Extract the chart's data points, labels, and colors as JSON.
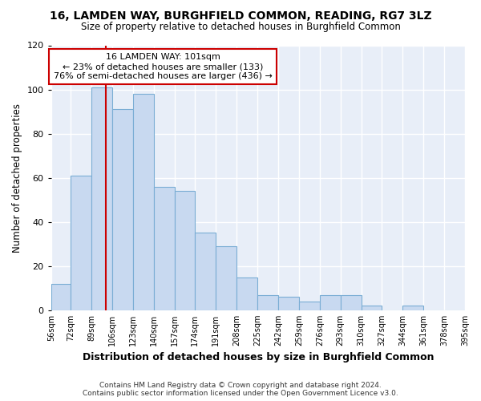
{
  "title": "16, LAMDEN WAY, BURGHFIELD COMMON, READING, RG7 3LZ",
  "subtitle": "Size of property relative to detached houses in Burghfield Common",
  "xlabel": "Distribution of detached houses by size in Burghfield Common",
  "ylabel": "Number of detached properties",
  "annotation_line1": "16 LAMDEN WAY: 101sqm",
  "annotation_line2": "← 23% of detached houses are smaller (133)",
  "annotation_line3": "76% of semi-detached houses are larger (436) →",
  "property_size": 101,
  "bin_edges": [
    56,
    72,
    89,
    106,
    123,
    140,
    157,
    174,
    191,
    208,
    225,
    242,
    259,
    276,
    293,
    310,
    327,
    344,
    361,
    378,
    395
  ],
  "bar_heights": [
    12,
    61,
    101,
    91,
    98,
    56,
    54,
    35,
    29,
    15,
    7,
    6,
    4,
    7,
    7,
    2,
    0,
    2,
    0,
    0
  ],
  "bar_color": "#c8d9f0",
  "bar_edge_color": "#7aadd4",
  "vline_color": "#cc0000",
  "vline_x": 101,
  "annotation_box_color": "#ffffff",
  "annotation_box_edge_color": "#cc0000",
  "footer_line1": "Contains HM Land Registry data © Crown copyright and database right 2024.",
  "footer_line2": "Contains public sector information licensed under the Open Government Licence v3.0.",
  "ylim": [
    0,
    120
  ],
  "yticks": [
    0,
    20,
    40,
    60,
    80,
    100,
    120
  ],
  "bg_color": "#e8eef8"
}
